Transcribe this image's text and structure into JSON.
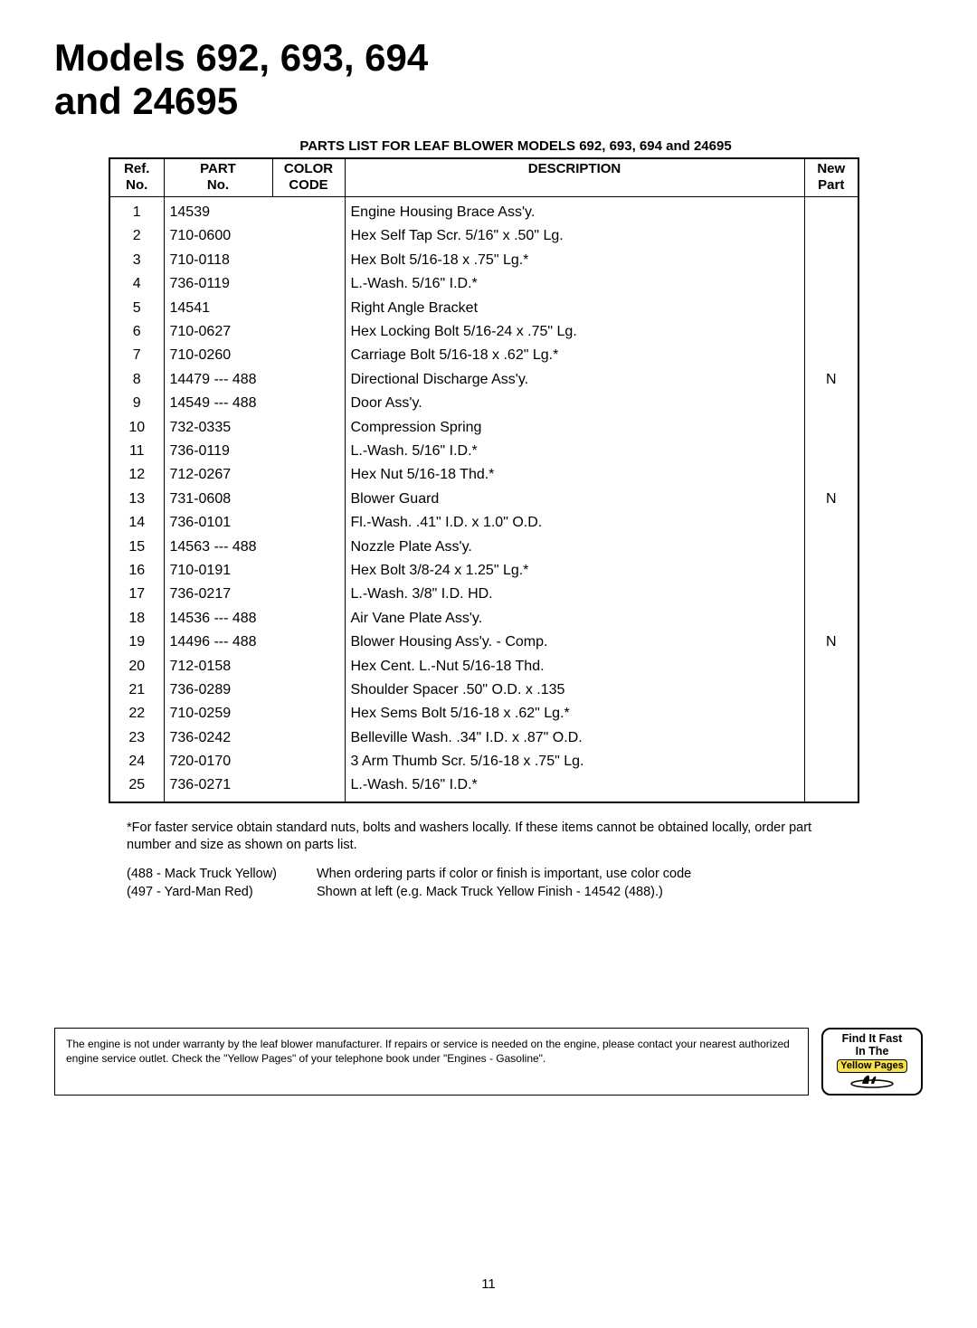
{
  "header": {
    "title_line1": "Models 692, 693, 694",
    "title_line2": "and 24695",
    "caption": "PARTS LIST FOR LEAF BLOWER MODELS 692, 693, 694 and 24695"
  },
  "table": {
    "columns": {
      "ref": "Ref.\nNo.",
      "part": "PART\nNo.",
      "color": "COLOR\nCODE",
      "desc": "DESCRIPTION",
      "newpart": "New\nPart"
    },
    "rows": [
      {
        "ref": "1",
        "part": "14539",
        "color": "",
        "desc": "Engine Housing Brace Ass'y.",
        "newpart": ""
      },
      {
        "ref": "2",
        "part": "710-0600",
        "color": "",
        "desc": "Hex Self Tap Scr. 5/16\" x .50\" Lg.",
        "newpart": ""
      },
      {
        "ref": "3",
        "part": "710-0118",
        "color": "",
        "desc": "Hex Bolt 5/16-18 x .75\" Lg.*",
        "newpart": ""
      },
      {
        "ref": "4",
        "part": "736-0119",
        "color": "",
        "desc": "L.-Wash. 5/16\" I.D.*",
        "newpart": ""
      },
      {
        "ref": "5",
        "part": "14541",
        "color": "",
        "desc": "Right Angle Bracket",
        "newpart": ""
      },
      {
        "ref": "6",
        "part": "710-0627",
        "color": "",
        "desc": "Hex Locking Bolt 5/16-24 x .75\" Lg.",
        "newpart": ""
      },
      {
        "ref": "7",
        "part": "710-0260",
        "color": "",
        "desc": "Carriage Bolt 5/16-18 x .62\" Lg.*",
        "newpart": ""
      },
      {
        "ref": "8",
        "part": "14479 --- 488",
        "color": "",
        "desc": "Directional Discharge Ass'y.",
        "newpart": "N"
      },
      {
        "ref": "9",
        "part": "14549 --- 488",
        "color": "",
        "desc": "Door Ass'y.",
        "newpart": ""
      },
      {
        "ref": "10",
        "part": "732-0335",
        "color": "",
        "desc": "Compression Spring",
        "newpart": ""
      },
      {
        "ref": "11",
        "part": "736-0119",
        "color": "",
        "desc": "L.-Wash. 5/16\" I.D.*",
        "newpart": ""
      },
      {
        "ref": "12",
        "part": "712-0267",
        "color": "",
        "desc": "Hex Nut 5/16-18 Thd.*",
        "newpart": ""
      },
      {
        "ref": "13",
        "part": "731-0608",
        "color": "",
        "desc": "Blower Guard",
        "newpart": "N"
      },
      {
        "ref": "14",
        "part": "736-0101",
        "color": "",
        "desc": "Fl.-Wash. .41\" I.D. x 1.0\" O.D.",
        "newpart": ""
      },
      {
        "ref": "15",
        "part": "14563 --- 488",
        "color": "",
        "desc": "Nozzle Plate Ass'y.",
        "newpart": ""
      },
      {
        "ref": "16",
        "part": "710-0191",
        "color": "",
        "desc": "Hex Bolt 3/8-24 x 1.25\" Lg.*",
        "newpart": ""
      },
      {
        "ref": "17",
        "part": "736-0217",
        "color": "",
        "desc": "L.-Wash. 3/8\" I.D. HD.",
        "newpart": ""
      },
      {
        "ref": "18",
        "part": "14536 --- 488",
        "color": "",
        "desc": "Air Vane Plate Ass'y.",
        "newpart": ""
      },
      {
        "ref": "19",
        "part": "14496 --- 488",
        "color": "",
        "desc": "Blower Housing Ass'y. - Comp.",
        "newpart": "N"
      },
      {
        "ref": "20",
        "part": "712-0158",
        "color": "",
        "desc": "Hex Cent. L.-Nut 5/16-18 Thd.",
        "newpart": ""
      },
      {
        "ref": "21",
        "part": "736-0289",
        "color": "",
        "desc": "Shoulder Spacer .50\" O.D. x .135",
        "newpart": ""
      },
      {
        "ref": "22",
        "part": "710-0259",
        "color": "",
        "desc": "Hex Sems Bolt 5/16-18 x .62\" Lg.*",
        "newpart": ""
      },
      {
        "ref": "23",
        "part": "736-0242",
        "color": "",
        "desc": "Belleville Wash. .34\" I.D. x .87\" O.D.",
        "newpart": ""
      },
      {
        "ref": "24",
        "part": "720-0170",
        "color": "",
        "desc": "3 Arm Thumb Scr. 5/16-18 x .75\" Lg.",
        "newpart": ""
      },
      {
        "ref": "25",
        "part": "736-0271",
        "color": "",
        "desc": "L.-Wash. 5/16\" I.D.*",
        "newpart": ""
      }
    ]
  },
  "footnote": "*For faster service obtain standard nuts, bolts and washers locally. If these items cannot be obtained locally, order part number and size as shown on parts list.",
  "color_codes": {
    "line1_left": "(488 - Mack Truck Yellow)",
    "line1_right": "When ordering parts if color or finish is important, use color code",
    "line2_left": "(497 - Yard-Man Red)",
    "line2_right": "Shown at left (e.g. Mack Truck Yellow Finish - 14542 (488).)"
  },
  "warranty": "The engine is not under warranty by the leaf blower manufacturer. If repairs or service is needed on the engine, please contact your nearest authorized engine service outlet. Check the \"Yellow Pages\" of your telephone book under \"Engines - Gasoline\".",
  "yellow_pages": {
    "line1": "Find It Fast",
    "line2": "In The",
    "line3": "Yellow Pages"
  },
  "page_number": "11"
}
